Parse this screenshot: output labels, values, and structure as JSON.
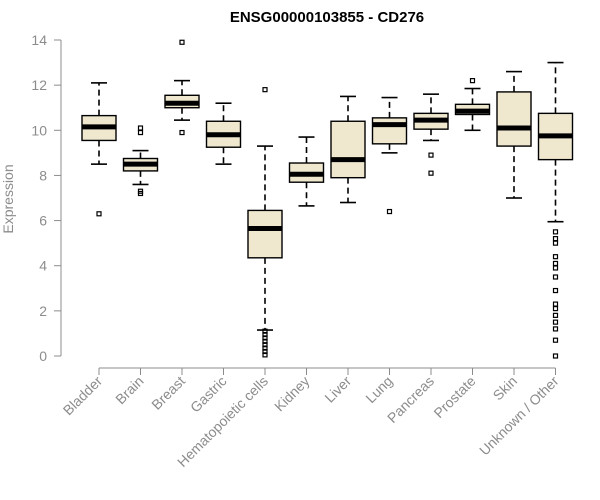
{
  "chart_data": {
    "type": "box",
    "title": "ENSG00000103855 - CD276",
    "xlabel": "",
    "ylabel": "Expression",
    "ylim": [
      0,
      14
    ],
    "yticks": [
      0,
      2,
      4,
      6,
      8,
      10,
      12,
      14
    ],
    "grid": false,
    "legend": "none",
    "colors": {
      "box_fill": "#efe8cf",
      "box_stroke": "#000000",
      "axis": "#8c8c8c"
    },
    "categories": [
      "Bladder",
      "Brain",
      "Breast",
      "Gastric",
      "Hematopoietic cells",
      "Kidney",
      "Liver",
      "Lung",
      "Pancreas",
      "Prostate",
      "Skin",
      "Unknown / Other"
    ],
    "boxes": [
      {
        "category": "Bladder",
        "whislo": 8.5,
        "q1": 9.55,
        "med": 10.15,
        "q3": 10.65,
        "whishi": 12.1,
        "fliers": [
          6.3
        ]
      },
      {
        "category": "Brain",
        "whislo": 7.6,
        "q1": 8.2,
        "med": 8.5,
        "q3": 8.75,
        "whishi": 9.1,
        "fliers": [
          10.1,
          9.9,
          7.3,
          7.2
        ]
      },
      {
        "category": "Breast",
        "whislo": 10.45,
        "q1": 11.0,
        "med": 11.2,
        "q3": 11.55,
        "whishi": 12.2,
        "fliers": [
          13.9,
          9.9
        ]
      },
      {
        "category": "Gastric",
        "whislo": 8.5,
        "q1": 9.25,
        "med": 9.8,
        "q3": 10.4,
        "whishi": 11.2,
        "fliers": []
      },
      {
        "category": "Hematopoietic cells",
        "whislo": 1.15,
        "q1": 4.35,
        "med": 5.65,
        "q3": 6.45,
        "whishi": 9.3,
        "fliers": [
          11.8,
          1.1,
          0.95,
          0.8,
          0.65,
          0.5,
          0.35,
          0.2,
          0.05
        ]
      },
      {
        "category": "Kidney",
        "whislo": 6.65,
        "q1": 7.7,
        "med": 8.05,
        "q3": 8.55,
        "whishi": 9.7,
        "fliers": []
      },
      {
        "category": "Liver",
        "whislo": 6.8,
        "q1": 7.9,
        "med": 8.7,
        "q3": 10.4,
        "whishi": 11.5,
        "fliers": []
      },
      {
        "category": "Lung",
        "whislo": 9.0,
        "q1": 9.4,
        "med": 10.25,
        "q3": 10.55,
        "whishi": 11.45,
        "fliers": [
          6.4
        ]
      },
      {
        "category": "Pancreas",
        "whislo": 9.55,
        "q1": 10.05,
        "med": 10.45,
        "q3": 10.75,
        "whishi": 11.6,
        "fliers": [
          8.9,
          8.1
        ]
      },
      {
        "category": "Prostate",
        "whislo": 10.0,
        "q1": 10.7,
        "med": 10.85,
        "q3": 11.15,
        "whishi": 11.85,
        "fliers": [
          12.2
        ]
      },
      {
        "category": "Skin",
        "whislo": 7.0,
        "q1": 9.3,
        "med": 10.1,
        "q3": 11.7,
        "whishi": 12.6,
        "fliers": []
      },
      {
        "category": "Unknown / Other",
        "whislo": 5.95,
        "q1": 8.7,
        "med": 9.75,
        "q3": 10.75,
        "whishi": 13.0,
        "fliers": [
          5.5,
          5.2,
          5.0,
          4.4,
          4.1,
          3.9,
          3.5,
          2.9,
          2.3,
          2.1,
          1.8,
          1.5,
          1.2,
          0.7,
          0.0
        ]
      }
    ]
  }
}
